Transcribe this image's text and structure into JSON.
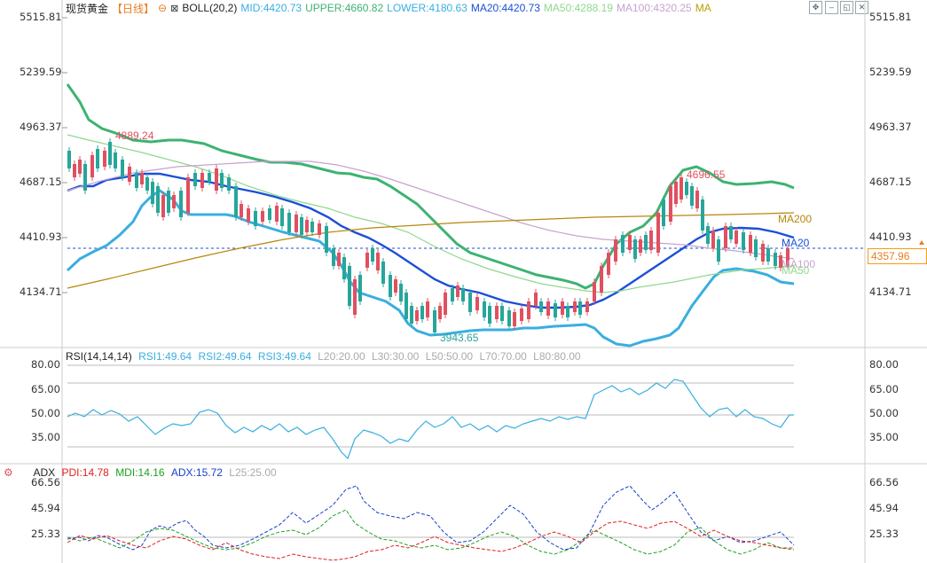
{
  "header": {
    "symbol": "现货黄金",
    "period": "【日线】",
    "indicator": "BOLL(20,2)",
    "mid": "MID:4420.73",
    "upper": "UPPER:4660.82",
    "lower": "LOWER:4180.63",
    "ma20": "MA20:4420.73",
    "ma50": "MA50:4288.19",
    "ma100": "MA100:4320.25",
    "ma": "MA"
  },
  "toolbar": [
    "expand-icon",
    "minimize-icon",
    "restore-icon",
    "close-icon"
  ],
  "main_axis": [
    "5515.81",
    "5239.59",
    "4963.37",
    "4687.15",
    "4410.93",
    "4134.71"
  ],
  "current_price": "4357.96",
  "annotations": {
    "high1": "4889.24",
    "high2": "4696.55",
    "low1": "3943.65",
    "ma200_label": "MA200",
    "ma20_label": "MA20",
    "ma100_label": "MA100",
    "ma50_label": "MA50"
  },
  "rsi": {
    "title": "RSI(14,14,14)",
    "rsi1": "RSI1:49.64",
    "rsi2": "RSI2:49.64",
    "rsi3": "RSI3:49.64",
    "l20": "L20:20.00",
    "l30": "L30:30.00",
    "l50": "L50:50.00",
    "l70": "L70:70.00",
    "l80": "L80:80.00",
    "axis": [
      "80.00",
      "65.00",
      "50.00",
      "35.00"
    ]
  },
  "adx": {
    "title": "ADX",
    "pdi": "PDI:14.78",
    "mdi": "MDI:14.16",
    "adx": "ADX:15.72",
    "l25": "L25:25.00",
    "axis": [
      "66.56",
      "45.94",
      "25.33"
    ]
  },
  "colors": {
    "boll": "#3cb371",
    "ma20": "#1a4fd8",
    "lower_band": "#3aaee0",
    "ma50": "#8fd88f",
    "ma100": "#c9a2d0",
    "ma200": "#b8860b",
    "up": "#e05060",
    "down": "#26a69a",
    "pdi": "#e02020",
    "mdi": "#20a020",
    "adx": "#1a3fc8",
    "price_tag": "#e67e22"
  }
}
